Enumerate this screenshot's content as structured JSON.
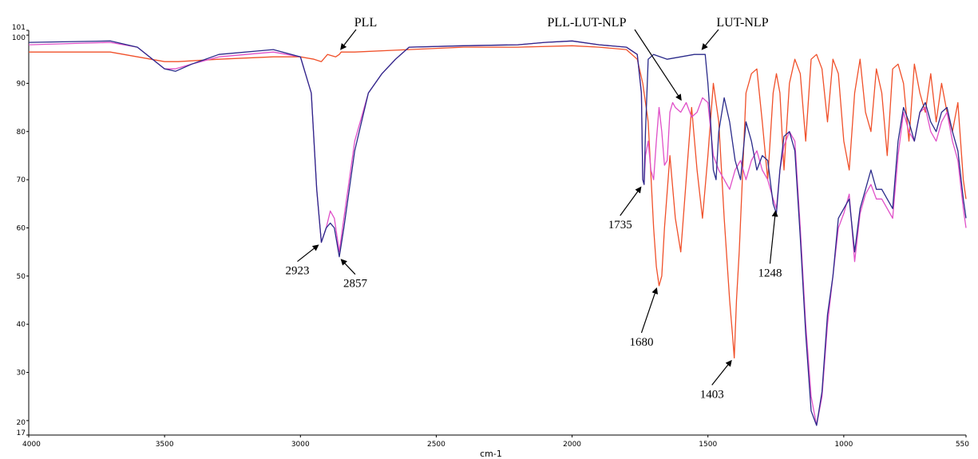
{
  "chart_data": {
    "type": "line",
    "xlabel": "cm-1",
    "ylabel": "",
    "title": "",
    "x_reversed": true,
    "xlim": [
      4000,
      550
    ],
    "ylim": [
      17,
      101
    ],
    "x_ticks": [
      4000,
      3500,
      3000,
      2500,
      2000,
      1500,
      1000,
      550
    ],
    "y_ticks": [
      17,
      20,
      30,
      40,
      50,
      60,
      70,
      80,
      90,
      100,
      101
    ],
    "grid": false,
    "series": [
      {
        "name": "PLL",
        "color": "#f0502a",
        "x": [
          4000,
          3700,
          3600,
          3500,
          3450,
          3300,
          3100,
          3000,
          2950,
          2923,
          2900,
          2870,
          2857,
          2850,
          2800,
          2600,
          2400,
          2200,
          2000,
          1900,
          1800,
          1760,
          1740,
          1720,
          1700,
          1690,
          1680,
          1670,
          1660,
          1640,
          1620,
          1600,
          1580,
          1560,
          1540,
          1520,
          1500,
          1480,
          1460,
          1440,
          1420,
          1410,
          1403,
          1395,
          1385,
          1375,
          1360,
          1340,
          1320,
          1300,
          1280,
          1260,
          1248,
          1235,
          1220,
          1200,
          1180,
          1160,
          1140,
          1120,
          1100,
          1080,
          1060,
          1040,
          1020,
          1000,
          980,
          960,
          940,
          920,
          900,
          880,
          860,
          840,
          820,
          800,
          780,
          760,
          740,
          720,
          700,
          680,
          660,
          640,
          620,
          600,
          580,
          560,
          550
        ],
        "y": [
          96.5,
          96.5,
          95.5,
          94.5,
          94.5,
          95.0,
          95.5,
          95.5,
          95.0,
          94.5,
          96.0,
          95.5,
          96.0,
          96.5,
          96.5,
          97.0,
          97.5,
          97.5,
          97.8,
          97.5,
          97.0,
          95.0,
          90.0,
          82.0,
          60.0,
          52.0,
          48.0,
          50.0,
          60.0,
          75.0,
          62.0,
          55.0,
          70.0,
          85.0,
          72.0,
          62.0,
          75.0,
          90.0,
          82.0,
          62.0,
          45.0,
          38.0,
          33.0,
          45.0,
          55.0,
          68.0,
          88.0,
          92.0,
          93.0,
          82.0,
          70.0,
          88.0,
          92.0,
          88.0,
          72.0,
          90.0,
          95.0,
          92.0,
          78.0,
          95.0,
          96.0,
          93.0,
          82.0,
          95.0,
          92.0,
          78.0,
          72.0,
          88.0,
          95.0,
          84.0,
          80.0,
          93.0,
          88.0,
          75.0,
          93.0,
          94.0,
          90.0,
          78.0,
          94.0,
          88.0,
          84.0,
          92.0,
          82.0,
          90.0,
          84.0,
          80.0,
          86.0,
          70.0,
          66.0
        ]
      },
      {
        "name": "PLL-LUT-NLP",
        "color": "#e050c8",
        "x": [
          4000,
          3700,
          3600,
          3500,
          3460,
          3400,
          3300,
          3100,
          3000,
          2960,
          2940,
          2923,
          2905,
          2890,
          2875,
          2857,
          2840,
          2800,
          2750,
          2700,
          2650,
          2600,
          2400,
          2200,
          2100,
          2000,
          1900,
          1800,
          1760,
          1745,
          1740,
          1735,
          1730,
          1720,
          1710,
          1700,
          1690,
          1680,
          1670,
          1660,
          1650,
          1640,
          1630,
          1620,
          1600,
          1580,
          1560,
          1540,
          1520,
          1500,
          1480,
          1460,
          1440,
          1420,
          1400,
          1380,
          1360,
          1340,
          1320,
          1300,
          1280,
          1260,
          1248,
          1235,
          1220,
          1200,
          1180,
          1160,
          1140,
          1120,
          1100,
          1080,
          1060,
          1040,
          1020,
          1000,
          980,
          960,
          940,
          920,
          900,
          880,
          860,
          840,
          820,
          800,
          780,
          760,
          740,
          720,
          700,
          680,
          660,
          640,
          620,
          600,
          580,
          560,
          550
        ],
        "y": [
          98.0,
          98.5,
          97.5,
          93.0,
          93.0,
          94.0,
          95.5,
          96.5,
          95.5,
          88.0,
          68.0,
          57.0,
          60.0,
          63.5,
          62.0,
          55.0,
          62.0,
          78.0,
          88.0,
          92.0,
          95.0,
          97.5,
          97.8,
          98.0,
          98.5,
          98.8,
          98.0,
          97.5,
          96.0,
          88.0,
          70.0,
          69.0,
          75.0,
          78.0,
          72.0,
          70.0,
          78.0,
          85.0,
          80.0,
          73.0,
          74.0,
          84.0,
          86.0,
          85.0,
          84.0,
          86.0,
          83.0,
          84.0,
          87.0,
          86.0,
          75.0,
          72.0,
          70.0,
          68.0,
          72.0,
          74.0,
          70.0,
          74.0,
          76.0,
          72.0,
          70.0,
          66.0,
          64.0,
          72.0,
          77.0,
          80.0,
          78.0,
          60.0,
          40.0,
          25.0,
          19.0,
          25.0,
          40.0,
          50.0,
          60.0,
          63.0,
          67.0,
          53.0,
          63.0,
          67.0,
          69.0,
          66.0,
          66.0,
          64.0,
          62.0,
          75.0,
          84.0,
          80.0,
          78.0,
          84.0,
          85.0,
          80.0,
          78.0,
          82.0,
          84.0,
          78.0,
          74.0,
          64.0,
          60.0
        ]
      },
      {
        "name": "LUT-NLP",
        "color": "#2a2a8a",
        "x": [
          4000,
          3700,
          3600,
          3500,
          3460,
          3400,
          3300,
          3100,
          3000,
          2960,
          2940,
          2923,
          2905,
          2890,
          2875,
          2857,
          2840,
          2800,
          2750,
          2700,
          2650,
          2600,
          2400,
          2200,
          2100,
          2000,
          1900,
          1800,
          1760,
          1745,
          1740,
          1735,
          1730,
          1720,
          1700,
          1650,
          1600,
          1550,
          1510,
          1500,
          1490,
          1480,
          1470,
          1460,
          1440,
          1420,
          1400,
          1380,
          1360,
          1340,
          1320,
          1300,
          1280,
          1260,
          1248,
          1235,
          1220,
          1200,
          1180,
          1160,
          1140,
          1120,
          1100,
          1080,
          1060,
          1040,
          1020,
          1000,
          980,
          960,
          940,
          920,
          900,
          880,
          860,
          840,
          820,
          800,
          780,
          760,
          740,
          720,
          700,
          680,
          660,
          640,
          620,
          600,
          580,
          560,
          550
        ],
        "y": [
          98.5,
          98.8,
          97.5,
          93.0,
          92.5,
          94.0,
          96.0,
          97.0,
          95.5,
          88.0,
          68.0,
          57.0,
          60.0,
          61.0,
          60.0,
          54.0,
          60.0,
          76.0,
          88.0,
          92.0,
          95.0,
          97.5,
          97.8,
          98.0,
          98.5,
          98.8,
          98.0,
          97.5,
          96.0,
          88.0,
          70.0,
          69.0,
          80.0,
          95.0,
          96.0,
          95.0,
          95.5,
          96.0,
          96.0,
          90.0,
          82.0,
          72.0,
          70.0,
          80.0,
          87.0,
          82.0,
          74.0,
          70.0,
          82.0,
          78.0,
          72.0,
          75.0,
          74.0,
          65.0,
          63.0,
          72.0,
          79.0,
          80.0,
          76.0,
          58.0,
          38.0,
          22.0,
          19.0,
          26.0,
          42.0,
          50.0,
          62.0,
          64.0,
          66.0,
          55.0,
          64.0,
          68.0,
          72.0,
          68.0,
          68.0,
          66.0,
          64.0,
          78.0,
          85.0,
          82.0,
          78.0,
          84.0,
          86.0,
          82.0,
          80.0,
          84.0,
          85.0,
          80.0,
          76.0,
          66.0,
          62.0
        ]
      }
    ],
    "annotations": [
      {
        "text": "2923",
        "x": 2923,
        "y": 57
      },
      {
        "text": "2857",
        "x": 2857,
        "y": 54
      },
      {
        "text": "1735",
        "x": 1735,
        "y": 69
      },
      {
        "text": "1680",
        "x": 1680,
        "y": 48
      },
      {
        "text": "1403",
        "x": 1403,
        "y": 33
      },
      {
        "text": "1248",
        "x": 1248,
        "y": 64
      }
    ],
    "series_labels": [
      {
        "text": "PLL",
        "target_x": 2850,
        "target_y": 96.5
      },
      {
        "text": "PLL-LUT-NLP",
        "target_x": 1600,
        "target_y": 86
      },
      {
        "text": "LUT-NLP",
        "target_x": 1520,
        "target_y": 96.5
      }
    ]
  }
}
